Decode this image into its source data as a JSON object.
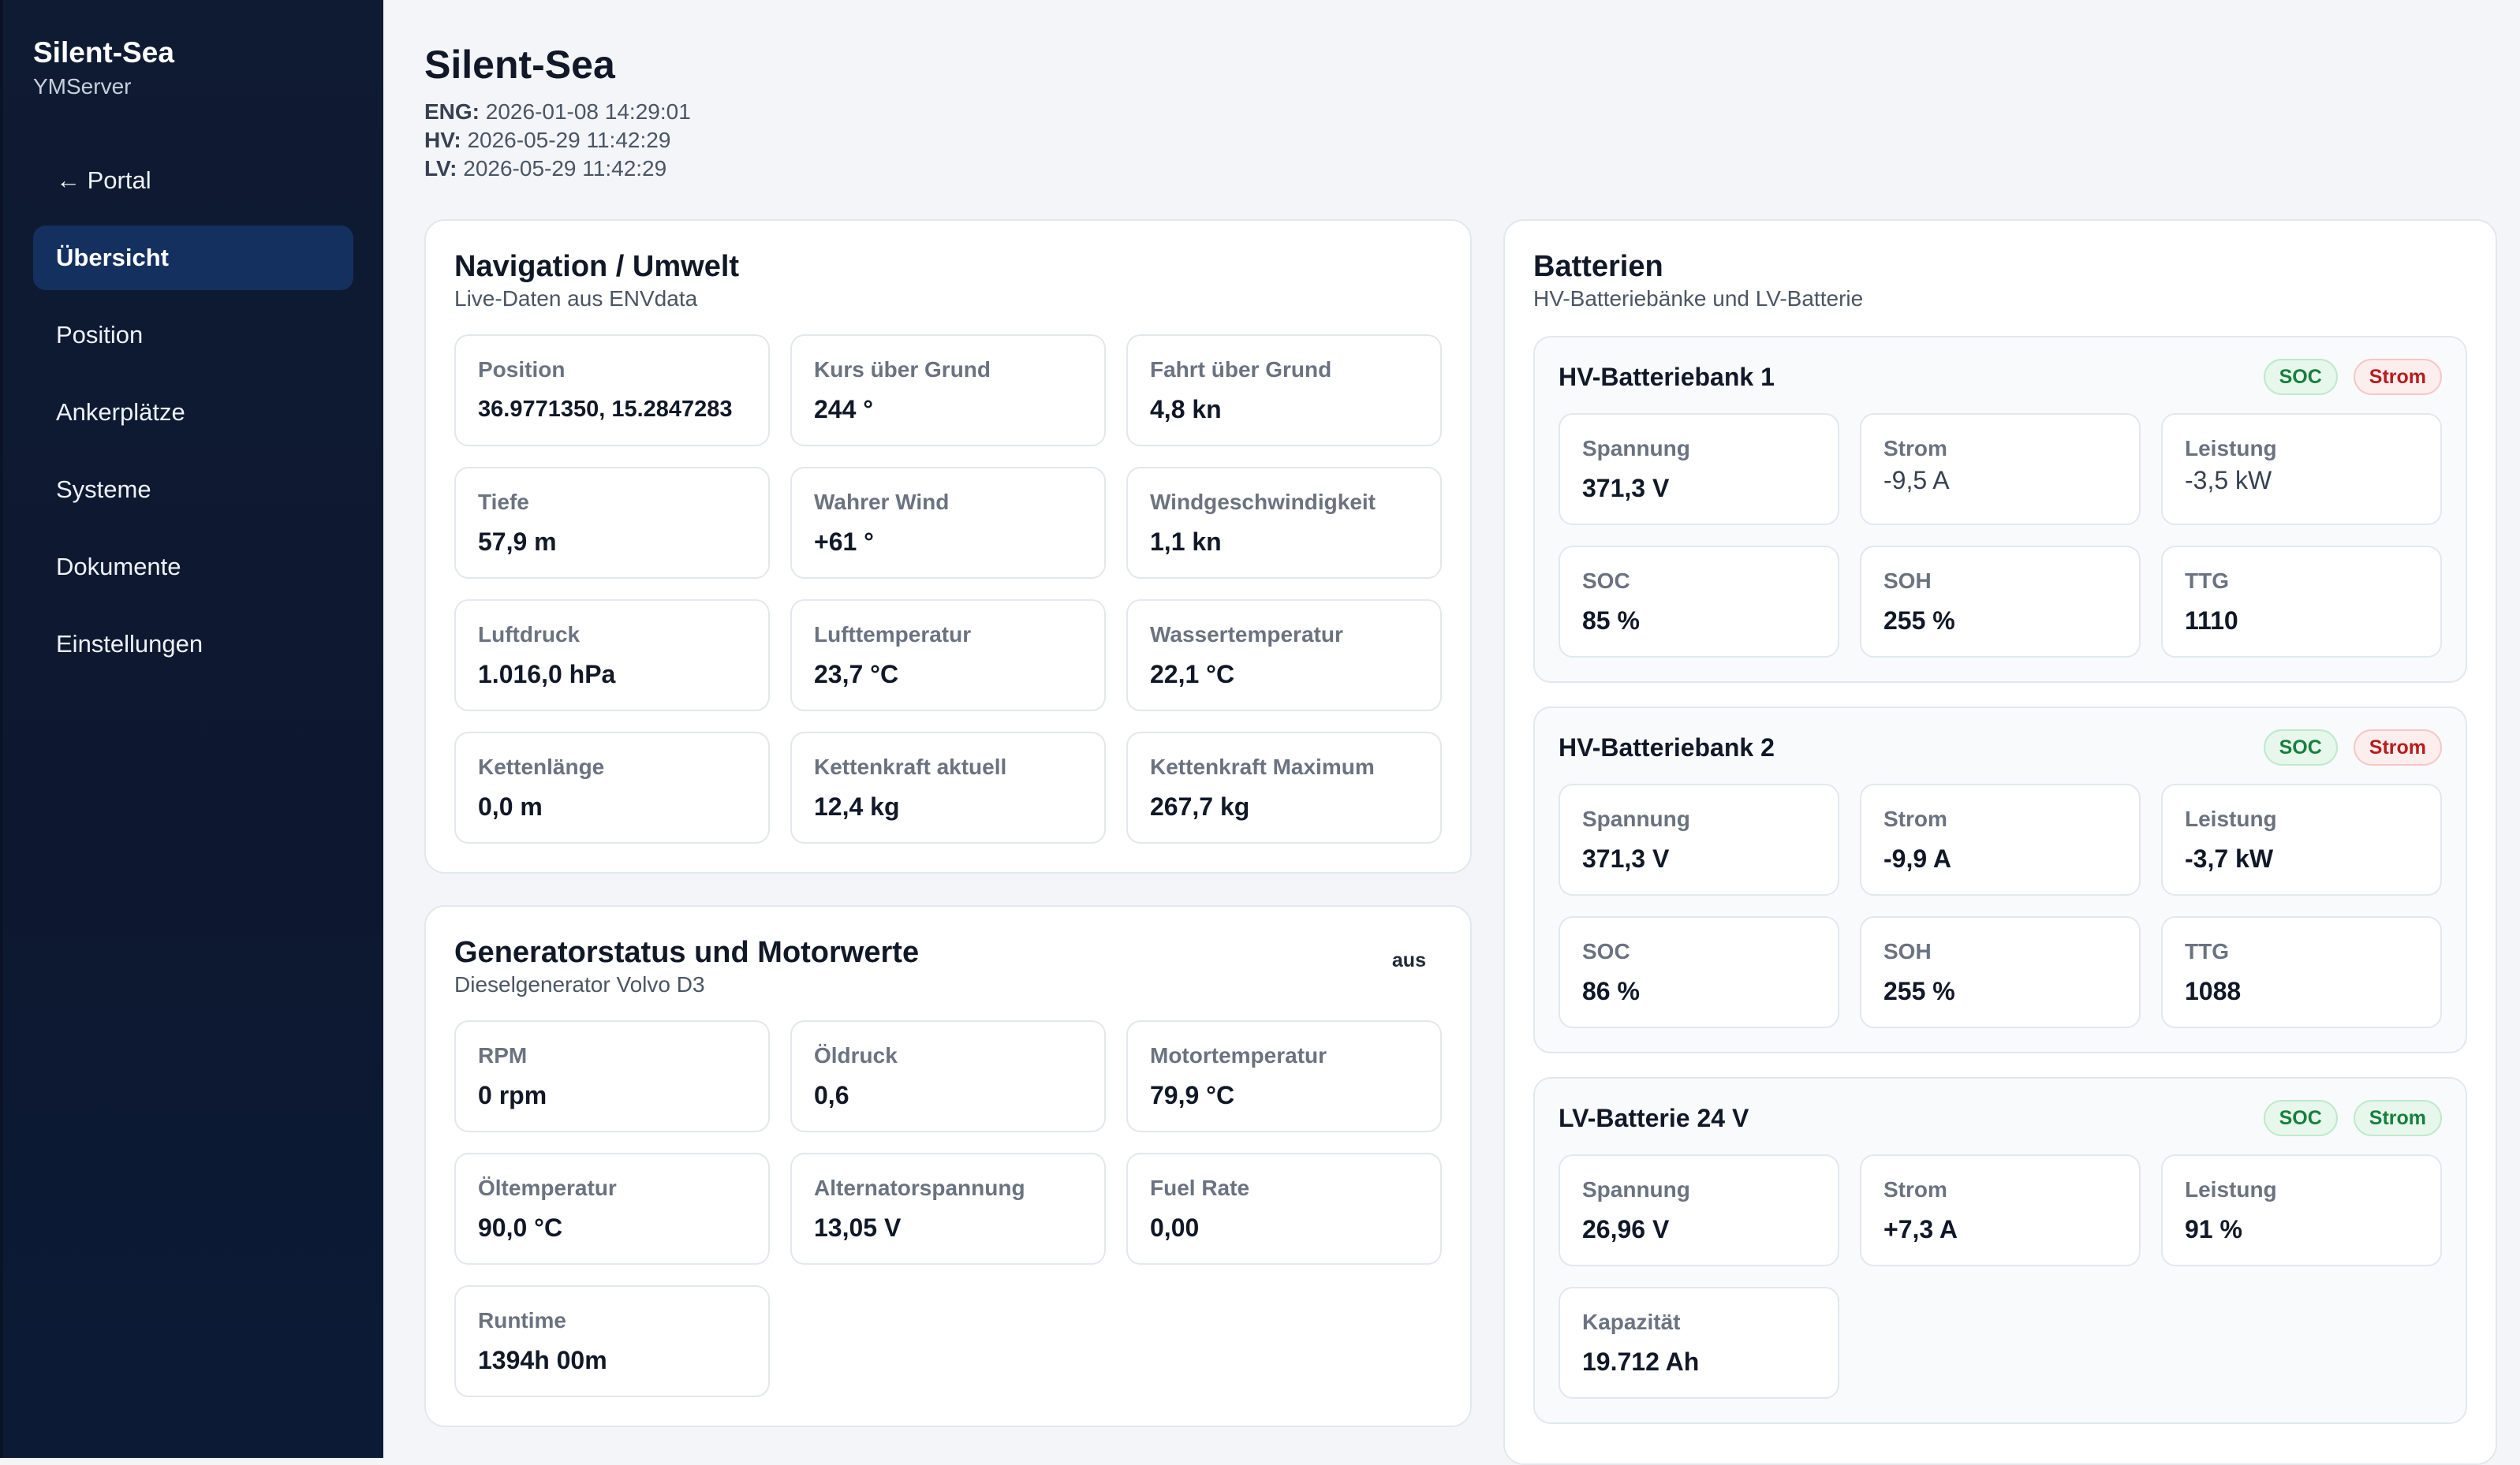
{
  "sidebar": {
    "brand": "Silent-Sea",
    "server": "YMServer",
    "items": [
      {
        "label": "← Portal",
        "active": false
      },
      {
        "label": "Übersicht",
        "active": true
      },
      {
        "label": "Position",
        "active": false
      },
      {
        "label": "Ankerplätze",
        "active": false
      },
      {
        "label": "Systeme",
        "active": false
      },
      {
        "label": "Dokumente",
        "active": false
      },
      {
        "label": "Einstellungen",
        "active": false
      }
    ]
  },
  "header": {
    "title": "Silent-Sea",
    "meta": [
      {
        "key": "ENG:",
        "value": "2026-01-08 14:29:01"
      },
      {
        "key": "HV:",
        "value": "2026-05-29 11:42:29"
      },
      {
        "key": "LV:",
        "value": "2026-05-29 11:42:29"
      }
    ]
  },
  "navigation": {
    "title": "Navigation / Umwelt",
    "subtitle": "Live-Daten aus ENVdata",
    "tiles": [
      {
        "label": "Position",
        "value": "36.9771350, 15.2847283"
      },
      {
        "label": "Kurs über Grund",
        "value": "244 °"
      },
      {
        "label": "Fahrt über Grund",
        "value": "4,8 kn"
      },
      {
        "label": "Tiefe",
        "value": "57,9 m"
      },
      {
        "label": "Wahrer Wind",
        "value": "+61 °"
      },
      {
        "label": "Windgeschwindigkeit",
        "value": "1,1 kn"
      },
      {
        "label": "Luftdruck",
        "value": "1.016,0 hPa"
      },
      {
        "label": "Lufttemperatur",
        "value": "23,7 °C"
      },
      {
        "label": "Wassertemperatur",
        "value": "22,1 °C"
      },
      {
        "label": "Kettenlänge",
        "value": "0,0 m"
      },
      {
        "label": "Kettenkraft aktuell",
        "value": "12,4 kg"
      },
      {
        "label": "Kettenkraft Maximum",
        "value": "267,7 kg"
      }
    ]
  },
  "generator": {
    "title": "Generatorstatus und Motorwerte",
    "subtitle": "Dieselgenerator Volvo D3",
    "status": "aus",
    "tiles": [
      {
        "label": "RPM",
        "value": "0 rpm"
      },
      {
        "label": "Öldruck",
        "value": "0,6"
      },
      {
        "label": "Motortemperatur",
        "value": "79,9 °C"
      },
      {
        "label": "Öltemperatur",
        "value": "90,0 °C"
      },
      {
        "label": "Alternatorspannung",
        "value": "13,05 V"
      },
      {
        "label": "Fuel Rate",
        "value": "0,00"
      },
      {
        "label": "Runtime",
        "value": "1394h 00m"
      }
    ]
  },
  "batteries": {
    "title": "Batterien",
    "subtitle": "HV-Batteriebänke und LV-Batterie",
    "banks": [
      {
        "title": "HV-Batteriebank 1",
        "badges": [
          {
            "label": "SOC",
            "color": "#16803c"
          },
          {
            "label": "Strom",
            "color": "#b91c1c"
          }
        ],
        "tiles": [
          {
            "label": "Spannung",
            "value": "371,3 V"
          },
          {
            "label": "Strom",
            "value": "-9,5 A"
          },
          {
            "label": "Leistung",
            "value": "-3,5 kW"
          },
          {
            "label": "SOC",
            "value": "85 %"
          },
          {
            "label": "SOH",
            "value": "255 %"
          },
          {
            "label": "TTG",
            "value": "1110"
          }
        ]
      },
      {
        "title": "HV-Batteriebank 2",
        "badges": [
          {
            "label": "SOC",
            "color": "#16803c"
          },
          {
            "label": "Strom",
            "color": "#b91c1c"
          }
        ],
        "tiles": [
          {
            "label": "Spannung",
            "value": "371,3 V"
          },
          {
            "label": "Strom",
            "value": "-9,9 A"
          },
          {
            "label": "Leistung",
            "value": "-3,7 kW"
          },
          {
            "label": "SOC",
            "value": "86 %"
          },
          {
            "label": "SOH",
            "value": "255 %"
          },
          {
            "label": "TTG",
            "value": "1088"
          }
        ]
      },
      {
        "title": "LV-Batterie 24 V",
        "badges": [
          {
            "label": "SOC",
            "color": "#16803c"
          },
          {
            "label": "Strom",
            "color": "#16803c"
          }
        ],
        "tiles": [
          {
            "label": "Spannung",
            "value": "26,96 V"
          },
          {
            "label": "Strom",
            "value": "+7,3 A"
          },
          {
            "label": "Leistung",
            "value": "91 %"
          },
          {
            "label": "Kapazität",
            "value": "19.712 Ah"
          }
        ]
      }
    ]
  }
}
